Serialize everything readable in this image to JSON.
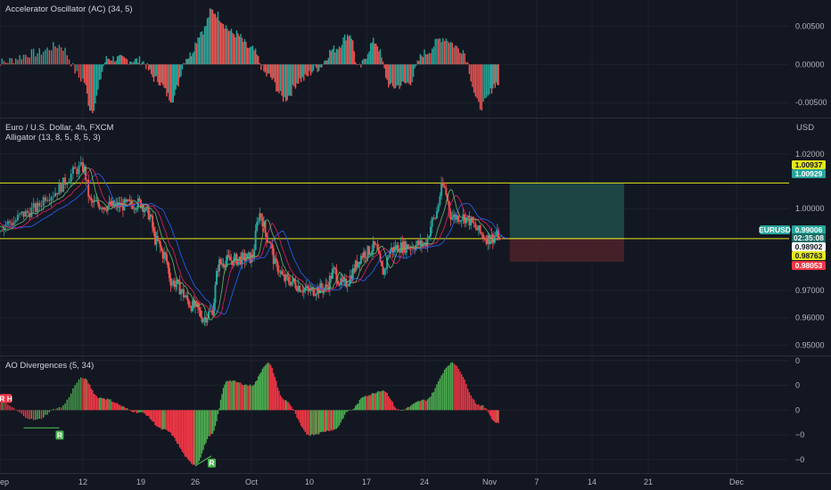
{
  "panes": {
    "ac": {
      "title": "Accelerator Oscillator (AC) (34, 5)"
    },
    "price": {
      "title": "Euro / U.S. Dollar, 4h, FXCM",
      "indicator": "Alligator (13, 8, 5, 8, 5, 3)",
      "unit": "USD"
    },
    "ao": {
      "title": "AO Divergences (5, 34)"
    }
  },
  "colors": {
    "background": "#131722",
    "up": "#26a69a",
    "down": "#ef5350",
    "ao_up": "#4caf50",
    "ao_down": "#f23645",
    "resistance_line": "#e6e61c",
    "jaw": "#2962ff",
    "teeth": "#e91e63",
    "lips": "#66bb6a",
    "profit_zone": "#1e4d4a",
    "loss_zone": "#4a2229"
  },
  "chart_data": [
    {
      "type": "bar",
      "name": "Accelerator Oscillator (AC) (34, 5)",
      "ylim": [
        -0.0065,
        0.0075
      ],
      "yticks": [
        "0.00500",
        "0.00000",
        "-0.00500"
      ],
      "ytick_values": [
        0.005,
        0.0,
        -0.005
      ],
      "key_values": [
        {
          "x": "Sep 5",
          "v": 0.0003
        },
        {
          "x": "Sep 8",
          "v": 0.0015
        },
        {
          "x": "Sep 10",
          "v": 0.0025
        },
        {
          "x": "Sep 12",
          "v": -0.002
        },
        {
          "x": "Sep 13",
          "v": -0.006
        },
        {
          "x": "Sep 15",
          "v": 0.0008
        },
        {
          "x": "Sep 19",
          "v": 0.0005
        },
        {
          "x": "Sep 21",
          "v": -0.002
        },
        {
          "x": "Sep 23",
          "v": -0.0045
        },
        {
          "x": "Sep 25",
          "v": 0.001
        },
        {
          "x": "Sep 27",
          "v": 0.0045
        },
        {
          "x": "Sep 28",
          "v": 0.007
        },
        {
          "x": "Oct 1",
          "v": 0.004
        },
        {
          "x": "Oct 3",
          "v": 0.002
        },
        {
          "x": "Oct 5",
          "v": -0.0015
        },
        {
          "x": "Oct 7",
          "v": -0.0045
        },
        {
          "x": "Oct 9",
          "v": -0.002
        },
        {
          "x": "Oct 11",
          "v": -0.0005
        },
        {
          "x": "Oct 13",
          "v": 0.002
        },
        {
          "x": "Oct 15",
          "v": 0.004
        },
        {
          "x": "Oct 16",
          "v": -0.0005
        },
        {
          "x": "Oct 18",
          "v": 0.003
        },
        {
          "x": "Oct 20",
          "v": -0.003
        },
        {
          "x": "Oct 22",
          "v": -0.0025
        },
        {
          "x": "Oct 24",
          "v": 0.0015
        },
        {
          "x": "Oct 26",
          "v": 0.0035
        },
        {
          "x": "Oct 28",
          "v": 0.002
        },
        {
          "x": "Oct 30",
          "v": -0.0055
        },
        {
          "x": "Nov 1",
          "v": -0.0025
        }
      ]
    },
    {
      "type": "candlestick",
      "name": "Euro / U.S. Dollar, 4h, FXCM",
      "ylim": [
        0.9475,
        1.0265
      ],
      "yticks": [
        "1.02000",
        "1.00000",
        "0.97000",
        "0.96000",
        "0.95000"
      ],
      "ytick_values": [
        1.02,
        1.0,
        0.97,
        0.96,
        0.95
      ],
      "key_closes": [
        {
          "x": "Sep 5",
          "v": 0.9935
        },
        {
          "x": "Sep 6",
          "v": 0.995
        },
        {
          "x": "Sep 7",
          "v": 0.998
        },
        {
          "x": "Sep 8",
          "v": 1.0
        },
        {
          "x": "Sep 9",
          "v": 1.005
        },
        {
          "x": "Sep 12",
          "v": 1.015
        },
        {
          "x": "Sep 13",
          "v": 1.002
        },
        {
          "x": "Sep 15",
          "v": 1.001
        },
        {
          "x": "Sep 16",
          "v": 1.001
        },
        {
          "x": "Sep 19",
          "v": 1.002
        },
        {
          "x": "Sep 20",
          "v": 0.998
        },
        {
          "x": "Sep 21",
          "v": 0.988
        },
        {
          "x": "Sep 22",
          "v": 0.983
        },
        {
          "x": "Sep 23",
          "v": 0.973
        },
        {
          "x": "Sep 26",
          "v": 0.964
        },
        {
          "x": "Sep 27",
          "v": 0.96
        },
        {
          "x": "Sep 28",
          "v": 0.962
        },
        {
          "x": "Sep 29",
          "v": 0.98
        },
        {
          "x": "Sep 30",
          "v": 0.981
        },
        {
          "x": "Oct 3",
          "v": 0.982
        },
        {
          "x": "Oct 4",
          "v": 0.998
        },
        {
          "x": "Oct 5",
          "v": 0.989
        },
        {
          "x": "Oct 6",
          "v": 0.979
        },
        {
          "x": "Oct 7",
          "v": 0.974
        },
        {
          "x": "Oct 10",
          "v": 0.97
        },
        {
          "x": "Oct 12",
          "v": 0.971
        },
        {
          "x": "Oct 13",
          "v": 0.977
        },
        {
          "x": "Oct 14",
          "v": 0.972
        },
        {
          "x": "Oct 17",
          "v": 0.984
        },
        {
          "x": "Oct 18",
          "v": 0.986
        },
        {
          "x": "Oct 19",
          "v": 0.977
        },
        {
          "x": "Oct 20",
          "v": 0.985
        },
        {
          "x": "Oct 21",
          "v": 0.986
        },
        {
          "x": "Oct 24",
          "v": 0.987
        },
        {
          "x": "Oct 25",
          "v": 0.996
        },
        {
          "x": "Oct 26",
          "v": 1.008
        },
        {
          "x": "Oct 27",
          "v": 0.997
        },
        {
          "x": "Oct 28",
          "v": 0.997
        },
        {
          "x": "Oct 31",
          "v": 0.989
        },
        {
          "x": "Nov 1",
          "v": 0.9901
        }
      ],
      "lines": {
        "resistance": 1.0094,
        "support": 0.989
      },
      "position": {
        "start": "Nov 3",
        "end": "Nov 18",
        "target": 1.00929,
        "entry": 0.98902,
        "stop": 0.98053
      },
      "price_tags": [
        {
          "text": "1.00937",
          "value": 1.00937,
          "style": "yellow"
        },
        {
          "text": "1.00929",
          "value": 1.00929,
          "style": "green"
        },
        {
          "text": "EURUSD",
          "value": 0.99006,
          "style": "symbol"
        },
        {
          "text": "0.99006",
          "value": 0.99006,
          "style": "green"
        },
        {
          "text": "02:35:08",
          "value": 0.98915,
          "style": "green-dark"
        },
        {
          "text": "0.98902",
          "value": 0.98902,
          "style": "white"
        },
        {
          "text": "0.98763",
          "value": 0.98763,
          "style": "yellow"
        },
        {
          "text": "0.98053",
          "value": 0.98053,
          "style": "red"
        }
      ]
    },
    {
      "type": "bar",
      "name": "AO Divergences (5, 34)",
      "ylim": [
        -0.024,
        0.021
      ],
      "yticks": [
        "0",
        "0",
        "0",
        "−0",
        "−0"
      ],
      "ytick_values": [
        0.02,
        0.01,
        0.0,
        -0.01,
        -0.02
      ],
      "key_values": [
        {
          "x": "Sep 5",
          "v": 0.003
        },
        {
          "x": "Sep 8",
          "v": -0.004
        },
        {
          "x": "Sep 10",
          "v": 0.001
        },
        {
          "x": "Sep 12",
          "v": 0.013
        },
        {
          "x": "Sep 14",
          "v": 0.005
        },
        {
          "x": "Sep 19",
          "v": -0.001
        },
        {
          "x": "Sep 22",
          "v": -0.008
        },
        {
          "x": "Sep 26",
          "v": -0.022
        },
        {
          "x": "Sep 28",
          "v": -0.01
        },
        {
          "x": "Sep 30",
          "v": 0.012
        },
        {
          "x": "Oct 3",
          "v": 0.01
        },
        {
          "x": "Oct 5",
          "v": 0.019
        },
        {
          "x": "Oct 7",
          "v": 0.004
        },
        {
          "x": "Oct 10",
          "v": -0.01
        },
        {
          "x": "Oct 13",
          "v": -0.008
        },
        {
          "x": "Oct 15",
          "v": 0.0
        },
        {
          "x": "Oct 17",
          "v": 0.006
        },
        {
          "x": "Oct 19",
          "v": 0.008
        },
        {
          "x": "Oct 21",
          "v": 0.0
        },
        {
          "x": "Oct 24",
          "v": 0.004
        },
        {
          "x": "Oct 27",
          "v": 0.019
        },
        {
          "x": "Oct 30",
          "v": 0.002
        },
        {
          "x": "Nov 1",
          "v": -0.005
        }
      ],
      "markers": [
        {
          "x": "Sep 5",
          "label": "R H"
        },
        {
          "x": "Sep 10",
          "label": "R"
        },
        {
          "x": "Sep 28",
          "label": "R"
        }
      ]
    }
  ],
  "x_axis": {
    "ticks": [
      {
        "label": "ep",
        "date": "Sep 5"
      },
      {
        "label": "12",
        "date": "Sep 12"
      },
      {
        "label": "19",
        "date": "Sep 19"
      },
      {
        "label": "26",
        "date": "Sep 26"
      },
      {
        "label": "Oct",
        "date": "Oct 3"
      },
      {
        "label": "10",
        "date": "Oct 10"
      },
      {
        "label": "17",
        "date": "Oct 17"
      },
      {
        "label": "24",
        "date": "Oct 24"
      },
      {
        "label": "Nov",
        "date": "Oct 31"
      },
      {
        "label": "7",
        "date": "Nov 7"
      },
      {
        "label": "14",
        "date": "Nov 14"
      },
      {
        "label": "21",
        "date": "Nov 21"
      },
      {
        "label": "Dec",
        "date": "Nov 28"
      }
    ]
  }
}
